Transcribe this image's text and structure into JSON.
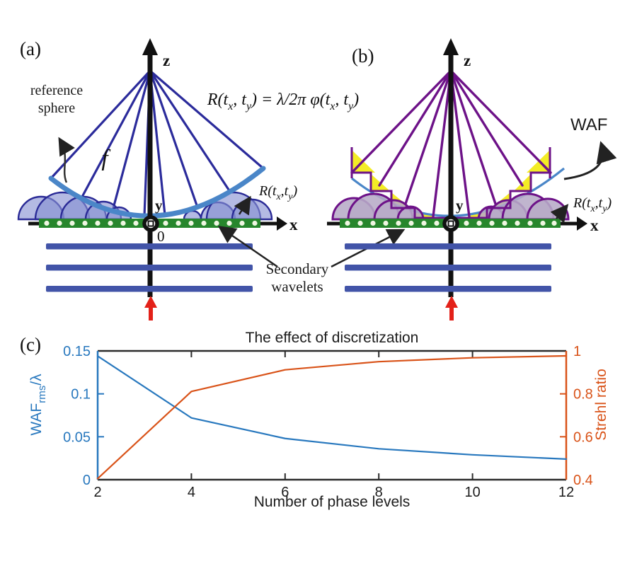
{
  "colors": {
    "ray_blue": "#2b2b9b",
    "ray_purple": "#6d1288",
    "arc_blue": "#4a86c8",
    "wavelet_fill_a": "#8690d2",
    "wavelet_fill_b": "#b7abc7",
    "green_bar": "#27862c",
    "plane_bar": "#4254a8",
    "red_arrow": "#e32119",
    "yellow_waf": "#f3ec26",
    "axis_black": "#1a1a1a",
    "left_axis_color": "#2878be",
    "right_axis_color": "#d95319"
  },
  "panel_a": {
    "label": "(a)",
    "axis": {
      "z": "z",
      "x": "x",
      "y": "y",
      "origin": "0"
    },
    "focal_label": "f",
    "reference_sphere": {
      "line1": "reference",
      "line2": "sphere"
    },
    "r_label": {
      "p1": "R(t",
      "s1": "x",
      "p2": ",t",
      "s2": "y",
      "p3": ")"
    }
  },
  "equation": {
    "p1": "R(t",
    "s1": "x",
    "p2": ", t",
    "s2": "y",
    "p3": ") = λ/2π φ(t",
    "s3": "x",
    "p4": ", t",
    "s4": "y",
    "p5": ")"
  },
  "panel_b": {
    "label": "(b)",
    "axis": {
      "z": "z",
      "x": "x",
      "y": "y"
    },
    "waf_label": "WAF",
    "r_label": {
      "p1": "R(t",
      "s1": "x",
      "p2": ",t",
      "s2": "y",
      "p3": ")"
    }
  },
  "secondary_wavelets": {
    "line1": "Secondary",
    "line2": "wavelets"
  },
  "panel_c": {
    "label": "(c)"
  },
  "chart_data": {
    "type": "line",
    "title": "The effect of discretization",
    "xlabel": "Number of phase levels",
    "x": [
      2,
      4,
      6,
      8,
      10,
      12
    ],
    "x_ticks": [
      2,
      4,
      6,
      8,
      10,
      12
    ],
    "x_tick_labels": [
      "2",
      "4",
      "6",
      "8",
      "10",
      "12"
    ],
    "xlim": [
      2,
      12
    ],
    "grid": false,
    "legend": "none",
    "series": [
      {
        "name": "WAF_rms/lambda",
        "axis": "left",
        "color": "#2878be",
        "values": [
          0.144,
          0.072,
          0.048,
          0.036,
          0.029,
          0.024
        ]
      },
      {
        "name": "Strehl ratio",
        "axis": "right",
        "color": "#d95319",
        "values": [
          0.405,
          0.811,
          0.912,
          0.95,
          0.968,
          0.977
        ]
      }
    ],
    "left_axis": {
      "label_parts": {
        "p1": "WAF",
        "sub": "rms",
        "p2": "/λ"
      },
      "range": [
        0,
        0.15
      ],
      "ticks": [
        0,
        0.05,
        0.1,
        0.15
      ],
      "tick_labels": [
        "0",
        "0.05",
        "0.1",
        "0.15"
      ],
      "color": "#2878be"
    },
    "right_axis": {
      "label": "Strehl ratio",
      "range": [
        0.4,
        1
      ],
      "ticks": [
        0.4,
        0.6,
        0.8,
        1
      ],
      "tick_labels": [
        "0.4",
        "0.6",
        "0.8",
        "1"
      ],
      "color": "#d95319"
    }
  }
}
